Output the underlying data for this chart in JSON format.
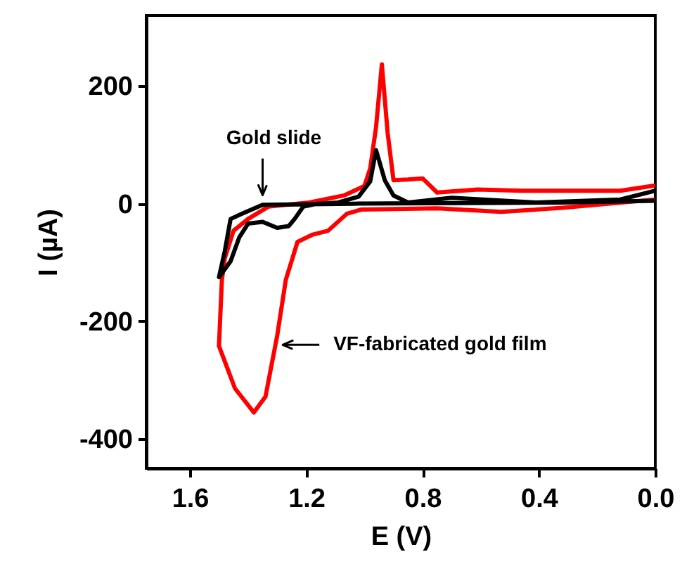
{
  "chart_data": {
    "type": "line",
    "xlabel": "E (V)",
    "ylabel": "I (µA)",
    "xlim": [
      1.75,
      0.0
    ],
    "xticks": [
      {
        "value": 1.6,
        "label": "1.6"
      },
      {
        "value": 1.2,
        "label": "1.2"
      },
      {
        "value": 0.8,
        "label": "0.8"
      },
      {
        "value": 0.4,
        "label": "0.4"
      },
      {
        "value": 0.0,
        "label": "0.0"
      }
    ],
    "ylim": [
      -450,
      320
    ],
    "yticks": [
      200,
      0,
      -200,
      -400
    ],
    "grid": false,
    "marker": "none",
    "line_style": "solid",
    "series": [
      {
        "color": "#ff0000",
        "x": [
          0.0,
          0.12,
          0.32,
          0.46,
          0.61,
          0.75,
          0.8,
          0.85,
          0.9,
          0.92,
          0.94,
          0.96,
          0.98,
          1.0,
          1.07,
          1.19,
          1.33,
          1.4,
          1.45,
          1.48,
          1.49,
          1.5,
          1.445,
          1.38,
          1.34,
          1.3,
          1.27,
          1.23,
          1.18,
          1.125,
          1.06,
          1.01,
          0.75,
          0.53,
          0.32,
          0.0
        ],
        "values": [
          31,
          22,
          22,
          22,
          24,
          19,
          43,
          41,
          40,
          120,
          237,
          130,
          60,
          30,
          14,
          2,
          -5,
          -26,
          -46,
          -93,
          -130,
          -242,
          -314,
          -355,
          -328,
          -225,
          -129,
          -65,
          -53,
          -46,
          -17,
          -10,
          -8,
          -14,
          -7,
          7
        ]
      },
      {
        "color": "#000000",
        "x": [
          0.0,
          0.12,
          0.41,
          0.7,
          0.85,
          0.9,
          0.93,
          0.96,
          0.98,
          1.02,
          1.09,
          1.16,
          1.21,
          1.24,
          1.26,
          1.3,
          1.35,
          1.4,
          1.43,
          1.46,
          1.5,
          1.48,
          1.46,
          1.42,
          1.35,
          1.04,
          0.32,
          0.0
        ],
        "values": [
          22,
          7,
          2,
          10,
          2,
          14,
          40,
          91,
          38,
          12,
          2,
          0,
          -5,
          -26,
          -38,
          -41,
          -31,
          -34,
          -57,
          -98,
          -125,
          -81,
          -26,
          -17,
          -2,
          0,
          2,
          5
        ]
      }
    ],
    "annotations": [
      {
        "text": "Gold slide",
        "x": 1.35,
        "y": 5
      },
      {
        "text": "VF-fabricated gold film",
        "x": 1.3,
        "y": -240
      }
    ]
  }
}
